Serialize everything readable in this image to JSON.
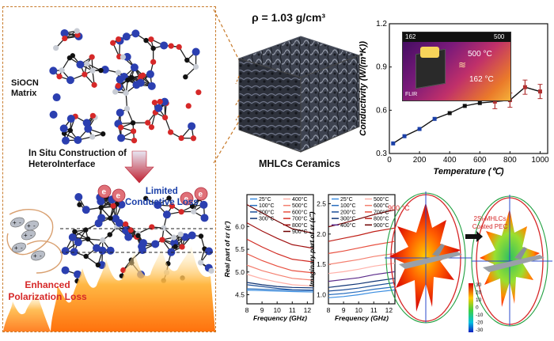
{
  "left_panel": {
    "matrix_label_line1": "SiOCN",
    "matrix_label_line2": "Matrix",
    "construction_line1": "In Situ Construction of",
    "construction_line2": "HeteroInterface",
    "limited_line1": "Limited",
    "limited_line2": "Conductive Loss",
    "enhanced_line1": "Enhanced",
    "enhanced_line2": "Polarization Loss",
    "electron_symbol": "e",
    "plus_symbol": "+",
    "minus_symbol": "-"
  },
  "center_panel": {
    "density_label": "ρ = 1.03 g/cm³",
    "ceramics_label": "MHLCs Ceramics"
  },
  "inset": {
    "temp_high": "500 °C",
    "temp_low": "162 °C",
    "corner_left": "162",
    "corner_right": "500",
    "brand": "FLIR"
  },
  "antenna": {
    "temp_label": "900 °C",
    "coated_line1": "2Si-MHLCs",
    "coated_line2": "Coated PEC",
    "scale_values": [
      "30",
      "20",
      "10",
      "0",
      "-10",
      "-20",
      "-30"
    ]
  },
  "colors": {
    "accent_red": "#d62828",
    "accent_blue": "#1a3fa8",
    "dash_orange": "#c77a2a"
  },
  "chart_data": [
    {
      "type": "line",
      "xlabel": "Temperature (℃)",
      "ylabel": "Conductivity (W/(m*K))",
      "x": [
        25,
        100,
        200,
        300,
        400,
        500,
        600,
        700,
        800,
        900,
        1000
      ],
      "y": [
        0.37,
        0.42,
        0.47,
        0.54,
        0.58,
        0.63,
        0.65,
        0.66,
        0.67,
        0.76,
        0.73
      ],
      "xlim": [
        0,
        1050
      ],
      "ylim": [
        0.3,
        1.2
      ],
      "xticks": [
        "0",
        "200",
        "400",
        "600",
        "800",
        "1000"
      ],
      "yticks": [
        "0.3",
        "0.6",
        "0.9",
        "1.2"
      ]
    },
    {
      "type": "line",
      "xlabel": "Frequency (GHz)",
      "ylabel": "Real part of εr (ε′)",
      "xlim": [
        8,
        12.4
      ],
      "ylim": [
        4.3,
        6.7
      ],
      "xticks": [
        "8",
        "9",
        "10",
        "11",
        "12"
      ],
      "yticks": [
        "4.5",
        "5.0",
        "5.5",
        "6.0"
      ],
      "legend_col1": [
        "25°C",
        "100°C",
        "200°C",
        "300°C"
      ],
      "legend_col2": [
        "400°C",
        "500°C",
        "600°C",
        "700°C",
        "800°C",
        "900°C"
      ],
      "series": [
        {
          "name": "25°C",
          "color": "#3a8de0",
          "values": [
            4.6,
            4.59,
            4.58,
            4.57,
            4.56
          ]
        },
        {
          "name": "100°C",
          "color": "#2a6fbf",
          "values": [
            4.63,
            4.62,
            4.61,
            4.6,
            4.59
          ]
        },
        {
          "name": "200°C",
          "color": "#1d4f99",
          "values": [
            4.72,
            4.68,
            4.64,
            4.61,
            4.6
          ]
        },
        {
          "name": "300°C",
          "color": "#0f3475",
          "values": [
            4.77,
            4.72,
            4.68,
            4.66,
            4.65
          ]
        },
        {
          "name": "400°C",
          "color": "#ffb0a8",
          "values": [
            4.95,
            4.85,
            4.78,
            4.72,
            4.69
          ]
        },
        {
          "name": "500°C",
          "color": "#f48070",
          "values": [
            5.15,
            5.03,
            4.94,
            4.86,
            4.82
          ]
        },
        {
          "name": "600°C",
          "color": "#e85040",
          "values": [
            5.4,
            5.25,
            5.13,
            5.03,
            4.98
          ]
        },
        {
          "name": "700°C",
          "color": "#d02820",
          "values": [
            5.72,
            5.55,
            5.4,
            5.28,
            5.22
          ]
        },
        {
          "name": "800°C",
          "color": "#a01010",
          "values": [
            6.08,
            5.9,
            5.74,
            5.6,
            5.52
          ]
        },
        {
          "name": "900°C",
          "color": "#700000",
          "values": [
            6.48,
            6.3,
            6.12,
            5.95,
            5.85
          ]
        }
      ],
      "x": [
        8,
        9,
        10,
        11,
        12.4
      ]
    },
    {
      "type": "line",
      "xlabel": "Frequency (GHz)",
      "ylabel": "Imaginary part of εr (ε″)",
      "xlim": [
        8,
        12.4
      ],
      "ylim": [
        0.85,
        2.65
      ],
      "xticks": [
        "8",
        "9",
        "10",
        "11",
        "12"
      ],
      "yticks": [
        "1.0",
        "1.5",
        "2.0",
        "2.5"
      ],
      "legend_col1": [
        "25°C",
        "100°C",
        "200°C",
        "300°C",
        "400°C"
      ],
      "legend_col2": [
        "500°C",
        "600°C",
        "700°C",
        "800°C",
        "900°C"
      ],
      "series": [
        {
          "name": "25°C",
          "color": "#3a8de0",
          "values": [
            0.95,
            0.97,
            1.0,
            1.04,
            1.08
          ]
        },
        {
          "name": "100°C",
          "color": "#2a6fbf",
          "values": [
            1.0,
            1.02,
            1.05,
            1.09,
            1.13
          ]
        },
        {
          "name": "200°C",
          "color": "#1d4f99",
          "values": [
            1.06,
            1.08,
            1.11,
            1.15,
            1.2
          ]
        },
        {
          "name": "300°C",
          "color": "#0f3475",
          "values": [
            1.12,
            1.15,
            1.18,
            1.22,
            1.27
          ]
        },
        {
          "name": "400°C",
          "color": "#5a2a8a",
          "values": [
            1.22,
            1.25,
            1.28,
            1.33,
            1.38
          ]
        },
        {
          "name": "500°C",
          "color": "#ffb0a8",
          "values": [
            1.35,
            1.38,
            1.42,
            1.47,
            1.52
          ]
        },
        {
          "name": "600°C",
          "color": "#f48070",
          "values": [
            1.5,
            1.54,
            1.58,
            1.63,
            1.68
          ]
        },
        {
          "name": "700°C",
          "color": "#e85040",
          "values": [
            1.68,
            1.72,
            1.77,
            1.82,
            1.88
          ]
        },
        {
          "name": "800°C",
          "color": "#c02018",
          "values": [
            1.88,
            1.93,
            1.98,
            2.04,
            2.1
          ]
        },
        {
          "name": "900°C",
          "color": "#700000",
          "values": [
            2.12,
            2.18,
            2.25,
            2.32,
            2.4
          ]
        }
      ],
      "x": [
        8,
        9,
        10,
        11,
        12.4
      ]
    }
  ]
}
